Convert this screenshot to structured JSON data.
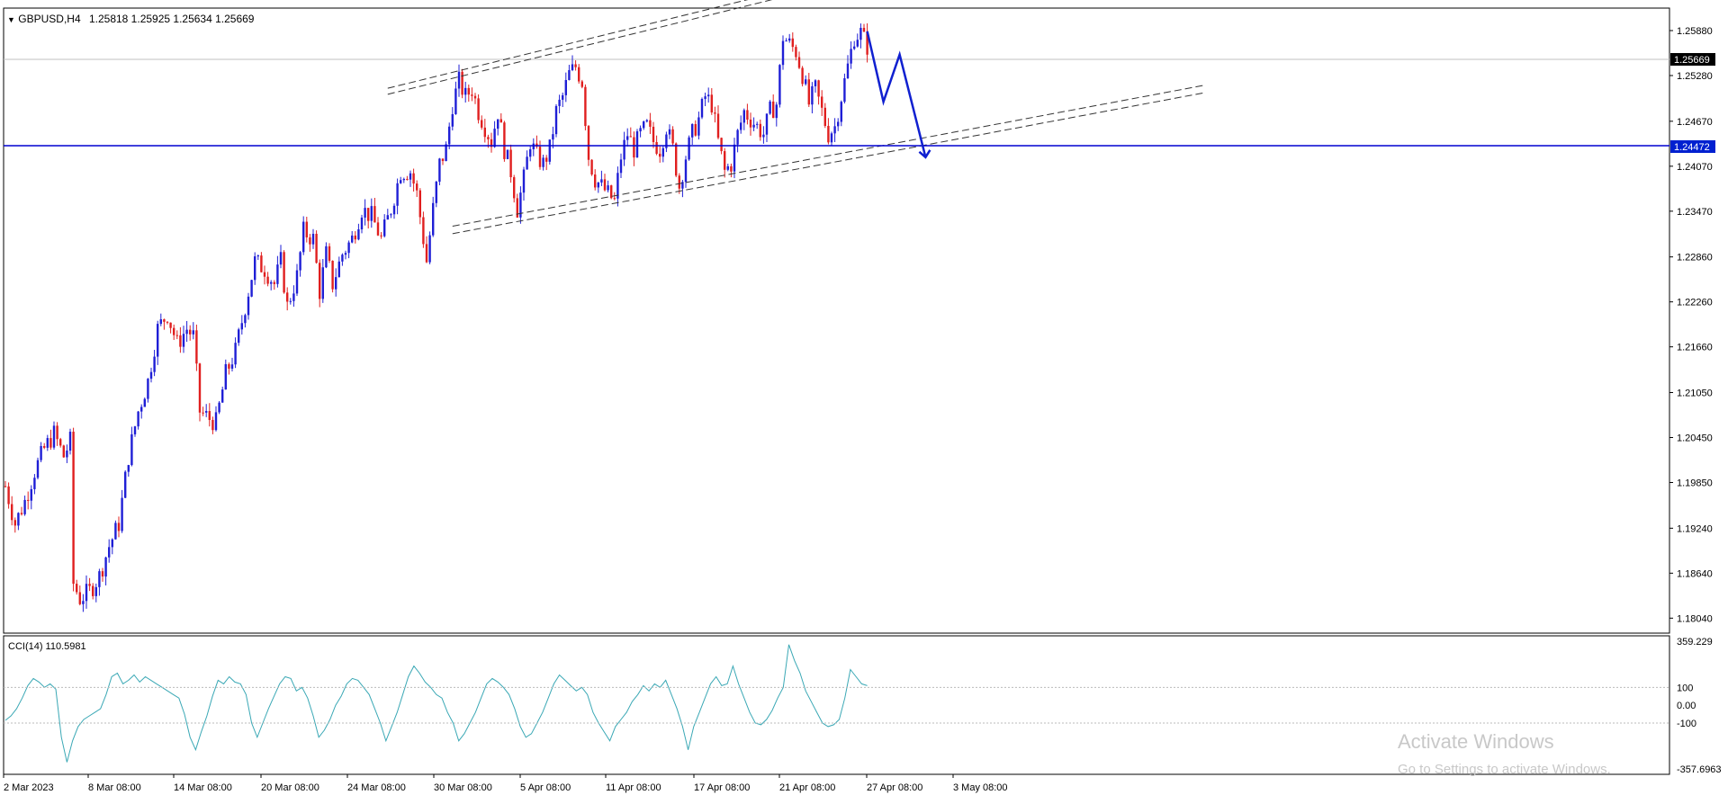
{
  "header": {
    "symbol": "GBPUSD,H4",
    "ohlc": "1.25818 1.25925 1.25634 1.25669",
    "dropdown_icon": "triangle-down-icon"
  },
  "colors": {
    "background": "#ffffff",
    "bull": "#1f1fd6",
    "bear": "#e01f1f",
    "cci_line": "#3aa8b5",
    "support_line": "#0000d0",
    "annotation": "#1020d0",
    "bid_tag_bg": "#000000",
    "support_tag_bg": "#0020d0",
    "channel": "#333333"
  },
  "chart_data": [
    {
      "type": "candlestick",
      "title": "GBPUSD,H4",
      "ylim": [
        1.1784,
        1.2618
      ],
      "y_ticks": [
        "1.25880",
        "1.25280",
        "1.24670",
        "1.24070",
        "1.23470",
        "1.22860",
        "1.22260",
        "1.21660",
        "1.21050",
        "1.20450",
        "1.19850",
        "1.19240",
        "1.18640",
        "1.18040"
      ],
      "x_ticks": [
        "2 Mar 2023",
        "8 Mar 08:00",
        "14 Mar 08:00",
        "20 Mar 08:00",
        "24 Mar 08:00",
        "30 Mar 08:00",
        "5 Apr 08:00",
        "11 Apr 08:00",
        "17 Apr 08:00",
        "21 Apr 08:00",
        "27 Apr 08:00",
        "3 May 08:00"
      ],
      "close_path": [
        [
          0,
          1.198
        ],
        [
          3,
          1.193
        ],
        [
          6,
          1.196
        ],
        [
          9,
          1.2
        ],
        [
          12,
          1.203
        ],
        [
          15,
          1.205
        ],
        [
          18,
          1.202
        ],
        [
          20,
          1.204
        ],
        [
          21,
          1.185
        ],
        [
          23,
          1.183
        ],
        [
          26,
          1.184
        ],
        [
          29,
          1.186
        ],
        [
          32,
          1.19
        ],
        [
          35,
          1.193
        ],
        [
          38,
          1.202
        ],
        [
          41,
          1.208
        ],
        [
          44,
          1.212
        ],
        [
          47,
          1.219
        ],
        [
          50,
          1.221
        ],
        [
          53,
          1.217
        ],
        [
          56,
          1.219
        ],
        [
          58,
          1.218
        ],
        [
          60,
          1.208
        ],
        [
          63,
          1.207
        ],
        [
          65,
          1.2065
        ],
        [
          68,
          1.213
        ],
        [
          71,
          1.216
        ],
        [
          74,
          1.222
        ],
        [
          77,
          1.228
        ],
        [
          80,
          1.227
        ],
        [
          83,
          1.225
        ],
        [
          85,
          1.228
        ],
        [
          87,
          1.222
        ],
        [
          90,
          1.226
        ],
        [
          92,
          1.232
        ],
        [
          95,
          1.231
        ],
        [
          97,
          1.224
        ],
        [
          99,
          1.229
        ],
        [
          101,
          1.225
        ],
        [
          104,
          1.229
        ],
        [
          107,
          1.231
        ],
        [
          110,
          1.235
        ],
        [
          113,
          1.234
        ],
        [
          116,
          1.231
        ],
        [
          119,
          1.235
        ],
        [
          122,
          1.24
        ],
        [
          125,
          1.24
        ],
        [
          127,
          1.237
        ],
        [
          129,
          1.231
        ],
        [
          130,
          1.228
        ],
        [
          132,
          1.235
        ],
        [
          134,
          1.241
        ],
        [
          136,
          1.243
        ],
        [
          138,
          1.249
        ],
        [
          140,
          1.252
        ],
        [
          142,
          1.25
        ],
        [
          144,
          1.251
        ],
        [
          146,
          1.248
        ],
        [
          148,
          1.246
        ],
        [
          150,
          1.244
        ],
        [
          152,
          1.248
        ],
        [
          154,
          1.243
        ],
        [
          156,
          1.24
        ],
        [
          158,
          1.235
        ],
        [
          160,
          1.239
        ],
        [
          162,
          1.244
        ],
        [
          164,
          1.242
        ],
        [
          166,
          1.241
        ],
        [
          168,
          1.243
        ],
        [
          170,
          1.248
        ],
        [
          172,
          1.25
        ],
        [
          174,
          1.253
        ],
        [
          176,
          1.254
        ],
        [
          178,
          1.252
        ],
        [
          180,
          1.242
        ],
        [
          182,
          1.239
        ],
        [
          184,
          1.238
        ],
        [
          186,
          1.237
        ],
        [
          188,
          1.236
        ],
        [
          190,
          1.242
        ],
        [
          192,
          1.245
        ],
        [
          194,
          1.243
        ],
        [
          196,
          1.245
        ],
        [
          198,
          1.246
        ],
        [
          200,
          1.244
        ],
        [
          202,
          1.243
        ],
        [
          204,
          1.246
        ],
        [
          206,
          1.243
        ],
        [
          208,
          1.238
        ],
        [
          210,
          1.242
        ],
        [
          212,
          1.245
        ],
        [
          214,
          1.247
        ],
        [
          216,
          1.25
        ],
        [
          218,
          1.249
        ],
        [
          220,
          1.244
        ],
        [
          222,
          1.24
        ],
        [
          224,
          1.241
        ],
        [
          226,
          1.245
        ],
        [
          228,
          1.248
        ],
        [
          230,
          1.247
        ],
        [
          232,
          1.246
        ],
        [
          234,
          1.245
        ],
        [
          236,
          1.248
        ],
        [
          238,
          1.249
        ],
        [
          240,
          1.258
        ],
        [
          242,
          1.257
        ],
        [
          244,
          1.256
        ],
        [
          246,
          1.253
        ],
        [
          248,
          1.249
        ],
        [
          250,
          1.251
        ],
        [
          252,
          1.248
        ],
        [
          254,
          1.245
        ],
        [
          256,
          1.246
        ],
        [
          258,
          1.25
        ],
        [
          260,
          1.254
        ],
        [
          262,
          1.258
        ],
        [
          264,
          1.2585
        ],
        [
          266,
          1.2567
        ]
      ],
      "bid_price": "1.25669",
      "support_level": "1.24472",
      "channel": [
        {
          "from": [
            118,
            1.2503
          ],
          "to": [
            242,
            1.2635
          ]
        },
        {
          "from": [
            118,
            1.2511
          ],
          "to": [
            242,
            1.2643
          ]
        },
        {
          "from": [
            138,
            1.2317
          ],
          "to": [
            370,
            1.2505
          ]
        },
        {
          "from": [
            138,
            1.2327
          ],
          "to": [
            370,
            1.2515
          ]
        }
      ],
      "forecast_path": [
        [
          266,
          1.2587
        ],
        [
          271,
          1.2493
        ],
        [
          276,
          1.2556
        ],
        [
          284,
          1.2419
        ]
      ]
    },
    {
      "type": "line",
      "title": "CCI(14) 110.5981",
      "ylim": [
        -357.6963,
        359.229
      ],
      "y_ticks": [
        "359.229",
        "100",
        "0.00",
        "-100",
        "-357.6963"
      ],
      "levels": [
        100,
        -100
      ],
      "values": [
        -85,
        -60,
        -20,
        40,
        110,
        150,
        130,
        100,
        120,
        90,
        -180,
        -320,
        -200,
        -120,
        -80,
        -60,
        -40,
        -20,
        60,
        160,
        180,
        120,
        140,
        170,
        130,
        160,
        140,
        120,
        100,
        80,
        60,
        40,
        -50,
        -180,
        -250,
        -150,
        -60,
        50,
        140,
        120,
        160,
        130,
        120,
        60,
        -100,
        -180,
        -100,
        -20,
        50,
        120,
        160,
        150,
        80,
        100,
        40,
        -60,
        -180,
        -140,
        -80,
        0,
        50,
        120,
        150,
        140,
        100,
        60,
        -20,
        -100,
        -200,
        -120,
        -40,
        60,
        160,
        220,
        180,
        130,
        100,
        60,
        40,
        -40,
        -100,
        -200,
        -160,
        -100,
        -40,
        40,
        120,
        150,
        130,
        100,
        60,
        -20,
        -120,
        -180,
        -160,
        -100,
        -40,
        40,
        120,
        170,
        140,
        110,
        80,
        100,
        60,
        -40,
        -100,
        -150,
        -200,
        -120,
        -80,
        -40,
        20,
        60,
        110,
        80,
        120,
        100,
        140,
        60,
        -20,
        -120,
        -250,
        -120,
        -40,
        40,
        120,
        160,
        110,
        120,
        220,
        120,
        40,
        -40,
        -100,
        -110,
        -80,
        -30,
        40,
        100,
        340,
        250,
        180,
        80,
        20,
        -40,
        -100,
        -120,
        -110,
        -80,
        40,
        200,
        160,
        120,
        110
      ]
    }
  ],
  "watermark": {
    "line1": "Activate Windows",
    "line2": "Go to Settings to activate Windows."
  }
}
